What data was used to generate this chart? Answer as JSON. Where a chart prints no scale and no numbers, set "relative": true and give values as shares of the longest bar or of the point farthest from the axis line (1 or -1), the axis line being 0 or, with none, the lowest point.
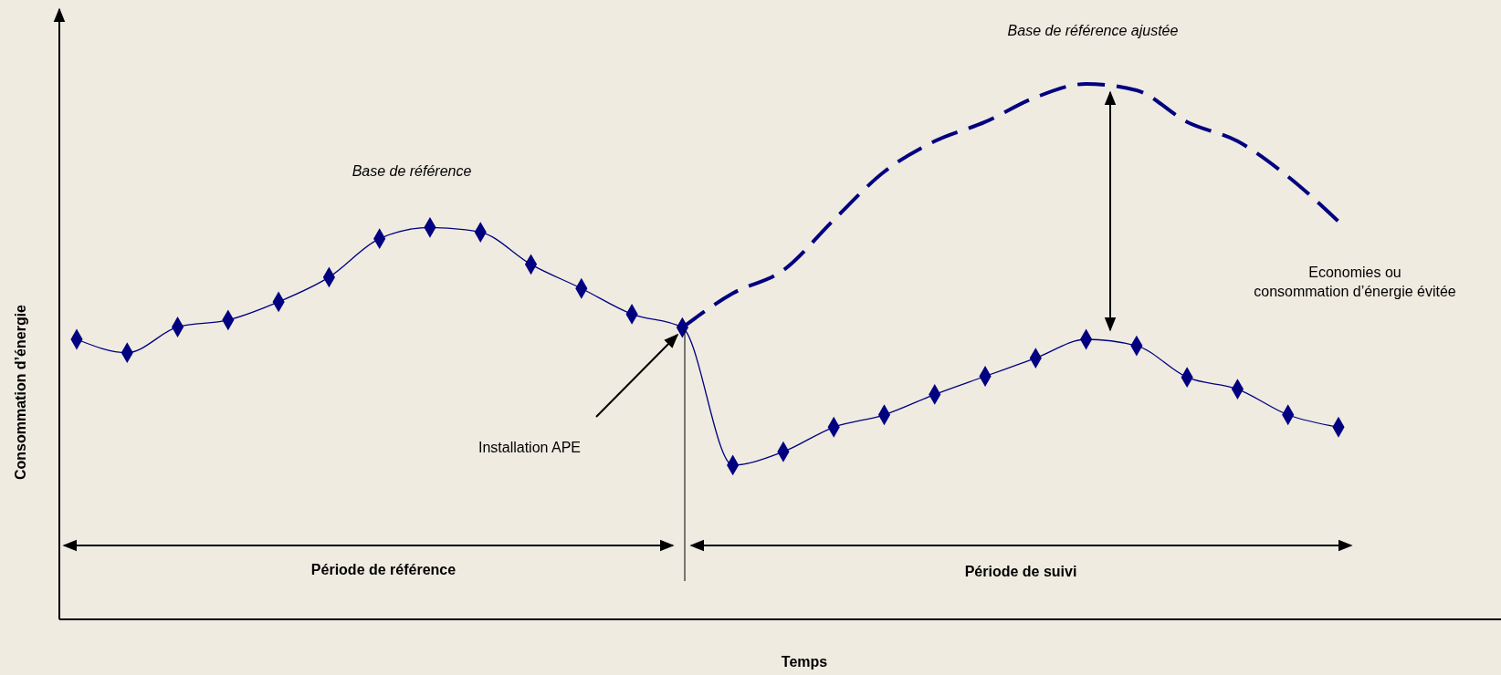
{
  "chart_data": {
    "type": "line",
    "relative": true,
    "xlabel": "Temps",
    "ylabel": "Consommation d’énergie",
    "categories": [
      null,
      null,
      null,
      null,
      null,
      null,
      null,
      null,
      null,
      null,
      null,
      null,
      null,
      null,
      null,
      null,
      null,
      null,
      null,
      null,
      null,
      null,
      null,
      null,
      null,
      null
    ],
    "series": [
      {
        "color": "#000080",
        "marker": "diamond",
        "line_style": "solid",
        "values": [
          0.523,
          0.498,
          0.546,
          0.559,
          0.593,
          0.639,
          0.711,
          0.732,
          0.723,
          0.663,
          0.618,
          0.57,
          0.545,
          0.288,
          0.313,
          0.359,
          0.382,
          0.42,
          0.454,
          0.488,
          0.523,
          0.511,
          0.452,
          0.43,
          0.382,
          0.359
        ]
      },
      {
        "color": "#000080",
        "marker": "none",
        "line_style": "dashed",
        "values": [
          null,
          null,
          null,
          null,
          null,
          null,
          null,
          null,
          null,
          null,
          null,
          null,
          0.545,
          0.609,
          0.652,
          0.746,
          0.836,
          0.893,
          0.929,
          0.975,
          1,
          0.988,
          0.929,
          0.893,
          0.827,
          0.743
        ]
      }
    ],
    "annotations": [
      "Base de référence",
      "Base de référence ajustée",
      "Installation APE",
      "Economies ou\nconsommation d’énergie évitée",
      "Période de référence",
      "Période de suivi"
    ]
  }
}
